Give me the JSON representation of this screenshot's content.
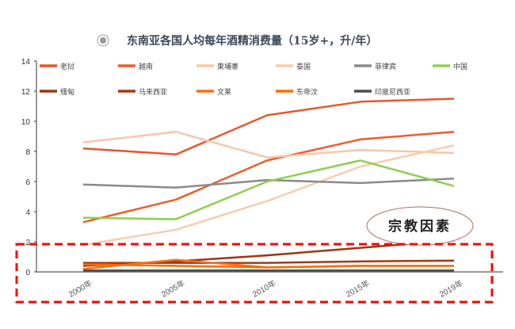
{
  "chart_data": {
    "type": "line",
    "title": "东南亚各国人均每年酒精消费量（15岁+，升/年）",
    "categories": [
      "2000年",
      "2005年",
      "2010年",
      "2015年",
      "2019年"
    ],
    "ylim": [
      0,
      14
    ],
    "yticks": [
      0,
      2,
      4,
      6,
      8,
      10,
      12,
      14
    ],
    "grid": false,
    "legend_placement": "top",
    "series": [
      {
        "name": "老挝",
        "color": "#E9562A",
        "values": [
          8.2,
          7.8,
          10.4,
          11.3,
          11.5
        ]
      },
      {
        "name": "越南",
        "color": "#EF5B2B",
        "values": [
          3.3,
          4.8,
          7.4,
          8.8,
          9.3
        ]
      },
      {
        "name": "柬埔寨",
        "color": "#F8C6A8",
        "values": [
          8.6,
          9.3,
          7.6,
          8.1,
          7.9
        ]
      },
      {
        "name": "泰国",
        "color": "#F9CBAF",
        "values": [
          1.8,
          2.8,
          4.7,
          7.0,
          8.4
        ]
      },
      {
        "name": "菲律宾",
        "color": "#8A8A8A",
        "values": [
          5.8,
          5.6,
          6.1,
          5.9,
          6.2
        ]
      },
      {
        "name": "中国",
        "color": "#8DCF4F",
        "values": [
          3.6,
          3.5,
          6.0,
          7.4,
          5.7
        ]
      },
      {
        "name": "缅甸",
        "color": "#9A3612",
        "values": [
          0.4,
          0.7,
          1.1,
          1.6,
          2.1
        ]
      },
      {
        "name": "马来西亚",
        "color": "#A33A10",
        "values": [
          0.6,
          0.6,
          0.6,
          0.7,
          0.75
        ]
      },
      {
        "name": "文莱",
        "color": "#FF6D12",
        "values": [
          0.2,
          0.8,
          0.3,
          0.4,
          0.4
        ]
      },
      {
        "name": "东帝汶",
        "color": "#FF6A00",
        "values": [
          0.5,
          0.4,
          0.3,
          0.4,
          0.4
        ]
      },
      {
        "name": "印度尼西亚",
        "color": "#4E4E4E",
        "values": [
          0.1,
          0.1,
          0.1,
          0.1,
          0.1
        ]
      }
    ],
    "annotation": "宗教因素",
    "highlight_color": "#FF0000"
  }
}
